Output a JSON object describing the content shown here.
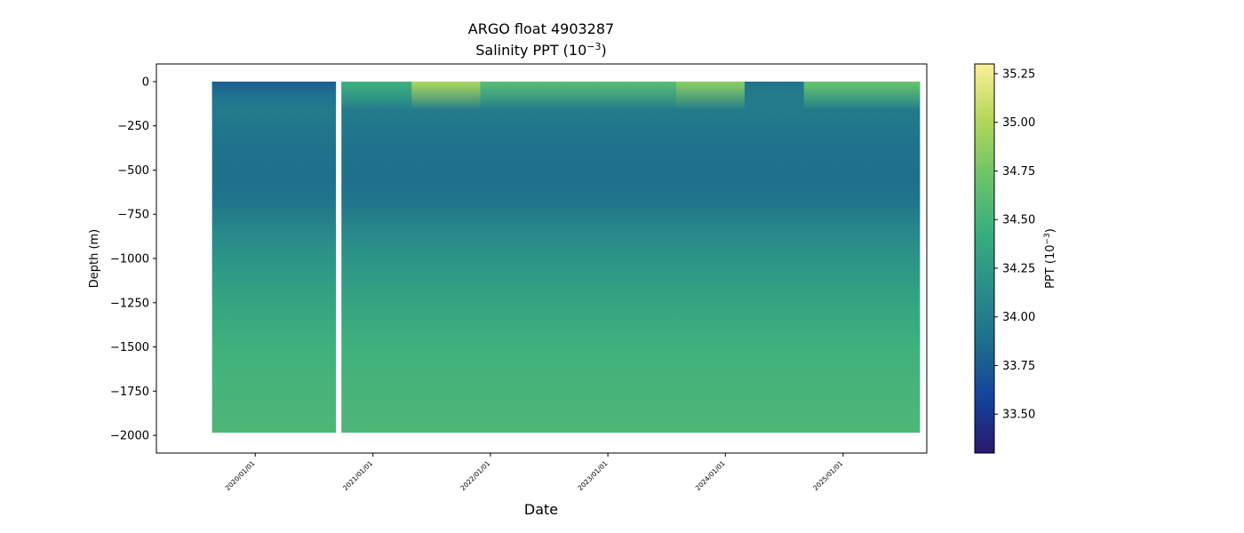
{
  "chart_data": {
    "type": "heatmap",
    "title_line1": "ARGO float 4903287",
    "title_line2_base": "Salinity PPT (10",
    "title_line2_exp": "−3",
    "title_line2_end": ")",
    "xlabel": "Date",
    "ylabel": "Depth (m)",
    "colorbar_label_base": "PPT (10",
    "colorbar_label_exp": "−3",
    "colorbar_label_end": ")",
    "xlim": [
      "2019-02-28",
      "2025-09-18"
    ],
    "ylim": [
      -2100,
      100
    ],
    "x_ticks": [
      {
        "date": "2020-01-01",
        "label": "2020/01/01"
      },
      {
        "date": "2021-01-01",
        "label": "2021/01/01"
      },
      {
        "date": "2022-01-01",
        "label": "2022/01/01"
      },
      {
        "date": "2023-01-01",
        "label": "2023/01/01"
      },
      {
        "date": "2024-01-01",
        "label": "2024/01/01"
      },
      {
        "date": "2025-01-01",
        "label": "2025/01/01"
      }
    ],
    "y_ticks": [
      0,
      -250,
      -500,
      -750,
      -1000,
      -1250,
      -1500,
      -1750,
      -2000
    ],
    "y_tick_labels": [
      "0",
      "−250",
      "−500",
      "−750",
      "−1000",
      "−1250",
      "−1500",
      "−1750",
      "−2000"
    ],
    "colorbar_range": [
      33.3,
      35.3
    ],
    "colorbar_ticks": [
      33.5,
      33.75,
      34.0,
      34.25,
      34.5,
      34.75,
      35.0,
      35.25
    ],
    "colorbar_tick_labels": [
      "33.50",
      "33.75",
      "34.00",
      "34.25",
      "34.50",
      "34.75",
      "35.00",
      "35.25"
    ],
    "colormap": "haline",
    "colormap_stops": [
      "#2a186c",
      "#14439c",
      "#1f6e8c",
      "#2a8f8a",
      "#3aae7e",
      "#6cc46a",
      "#b5d65a",
      "#fdef9a"
    ],
    "segments": [
      {
        "start": "2019-08-20",
        "end": "2020-09-08"
      },
      {
        "start": "2020-09-25",
        "end": "2025-08-28"
      }
    ],
    "max_depth_m": -1985,
    "salinity_profile": [
      {
        "depth": 0,
        "value": 34.35
      },
      {
        "depth": -50,
        "value": 34.1
      },
      {
        "depth": -150,
        "value": 33.98
      },
      {
        "depth": -300,
        "value": 33.92
      },
      {
        "depth": -450,
        "value": 33.9
      },
      {
        "depth": -550,
        "value": 33.88
      },
      {
        "depth": -700,
        "value": 33.95
      },
      {
        "depth": -850,
        "value": 34.1
      },
      {
        "depth": -1000,
        "value": 34.2
      },
      {
        "depth": -1250,
        "value": 34.35
      },
      {
        "depth": -1500,
        "value": 34.47
      },
      {
        "depth": -1750,
        "value": 34.52
      },
      {
        "depth": -2000,
        "value": 34.55
      }
    ],
    "surface_layer": [
      {
        "start": "2019-08-20",
        "end": "2020-09-08",
        "value": 33.75
      },
      {
        "start": "2020-09-25",
        "end": "2021-05-01",
        "value": 34.45
      },
      {
        "start": "2021-05-01",
        "end": "2021-12-01",
        "value": 35.0
      },
      {
        "start": "2021-12-01",
        "end": "2023-08-01",
        "value": 34.6
      },
      {
        "start": "2023-08-01",
        "end": "2024-03-01",
        "value": 34.85
      },
      {
        "start": "2024-03-01",
        "end": "2024-09-01",
        "value": 33.9
      },
      {
        "start": "2024-09-01",
        "end": "2025-08-28",
        "value": 34.7
      }
    ],
    "grid": false
  }
}
